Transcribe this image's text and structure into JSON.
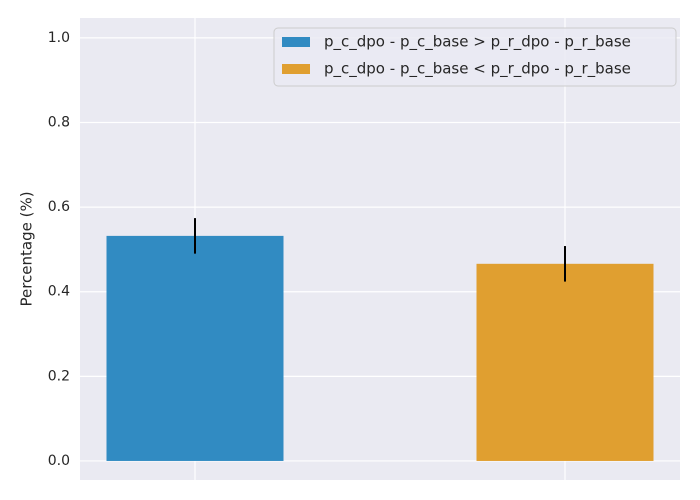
{
  "chart_data": {
    "type": "bar",
    "categories": [
      null,
      null
    ],
    "series": [
      {
        "name": "p_c_dpo - p_c_base > p_r_dpo - p_r_base",
        "color": "#318bc2",
        "values": [
          0.532,
          null
        ],
        "errors": [
          0.042,
          null
        ]
      },
      {
        "name": "p_c_dpo - p_c_base < p_r_dpo - p_r_base",
        "color": "#e09f30",
        "values": [
          null,
          0.466
        ],
        "errors": [
          null,
          0.042
        ]
      }
    ],
    "ylabel": "Percentage (%)",
    "ylim": [
      -0.045,
      1.047
    ],
    "yticks": [
      {
        "value": 0,
        "label": "0.0"
      },
      0.2,
      0.4,
      0.6,
      0.8,
      {
        "value": 1,
        "label": "1.0"
      }
    ],
    "grid": true,
    "legend": "upper right"
  }
}
